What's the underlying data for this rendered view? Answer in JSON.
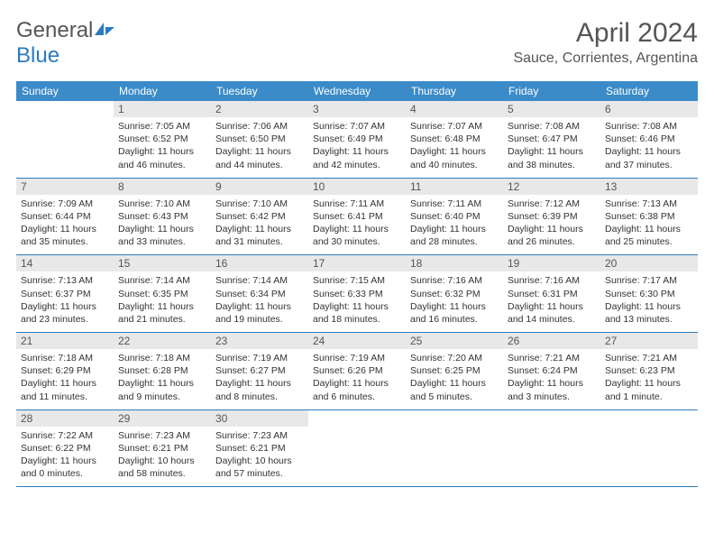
{
  "logo": {
    "text1": "General",
    "text2": "Blue"
  },
  "title": "April 2024",
  "location": "Sauce, Corrientes, Argentina",
  "colors": {
    "header_bg": "#3b8bc9",
    "header_text": "#ffffff",
    "daynum_bg": "#e8e8e8",
    "border": "#2b7bbf",
    "title_color": "#555555",
    "body_text": "#333333"
  },
  "day_names": [
    "Sunday",
    "Monday",
    "Tuesday",
    "Wednesday",
    "Thursday",
    "Friday",
    "Saturday"
  ],
  "weeks": [
    [
      null,
      {
        "n": "1",
        "sunrise": "7:05 AM",
        "sunset": "6:52 PM",
        "daylight": "11 hours and 46 minutes."
      },
      {
        "n": "2",
        "sunrise": "7:06 AM",
        "sunset": "6:50 PM",
        "daylight": "11 hours and 44 minutes."
      },
      {
        "n": "3",
        "sunrise": "7:07 AM",
        "sunset": "6:49 PM",
        "daylight": "11 hours and 42 minutes."
      },
      {
        "n": "4",
        "sunrise": "7:07 AM",
        "sunset": "6:48 PM",
        "daylight": "11 hours and 40 minutes."
      },
      {
        "n": "5",
        "sunrise": "7:08 AM",
        "sunset": "6:47 PM",
        "daylight": "11 hours and 38 minutes."
      },
      {
        "n": "6",
        "sunrise": "7:08 AM",
        "sunset": "6:46 PM",
        "daylight": "11 hours and 37 minutes."
      }
    ],
    [
      {
        "n": "7",
        "sunrise": "7:09 AM",
        "sunset": "6:44 PM",
        "daylight": "11 hours and 35 minutes."
      },
      {
        "n": "8",
        "sunrise": "7:10 AM",
        "sunset": "6:43 PM",
        "daylight": "11 hours and 33 minutes."
      },
      {
        "n": "9",
        "sunrise": "7:10 AM",
        "sunset": "6:42 PM",
        "daylight": "11 hours and 31 minutes."
      },
      {
        "n": "10",
        "sunrise": "7:11 AM",
        "sunset": "6:41 PM",
        "daylight": "11 hours and 30 minutes."
      },
      {
        "n": "11",
        "sunrise": "7:11 AM",
        "sunset": "6:40 PM",
        "daylight": "11 hours and 28 minutes."
      },
      {
        "n": "12",
        "sunrise": "7:12 AM",
        "sunset": "6:39 PM",
        "daylight": "11 hours and 26 minutes."
      },
      {
        "n": "13",
        "sunrise": "7:13 AM",
        "sunset": "6:38 PM",
        "daylight": "11 hours and 25 minutes."
      }
    ],
    [
      {
        "n": "14",
        "sunrise": "7:13 AM",
        "sunset": "6:37 PM",
        "daylight": "11 hours and 23 minutes."
      },
      {
        "n": "15",
        "sunrise": "7:14 AM",
        "sunset": "6:35 PM",
        "daylight": "11 hours and 21 minutes."
      },
      {
        "n": "16",
        "sunrise": "7:14 AM",
        "sunset": "6:34 PM",
        "daylight": "11 hours and 19 minutes."
      },
      {
        "n": "17",
        "sunrise": "7:15 AM",
        "sunset": "6:33 PM",
        "daylight": "11 hours and 18 minutes."
      },
      {
        "n": "18",
        "sunrise": "7:16 AM",
        "sunset": "6:32 PM",
        "daylight": "11 hours and 16 minutes."
      },
      {
        "n": "19",
        "sunrise": "7:16 AM",
        "sunset": "6:31 PM",
        "daylight": "11 hours and 14 minutes."
      },
      {
        "n": "20",
        "sunrise": "7:17 AM",
        "sunset": "6:30 PM",
        "daylight": "11 hours and 13 minutes."
      }
    ],
    [
      {
        "n": "21",
        "sunrise": "7:18 AM",
        "sunset": "6:29 PM",
        "daylight": "11 hours and 11 minutes."
      },
      {
        "n": "22",
        "sunrise": "7:18 AM",
        "sunset": "6:28 PM",
        "daylight": "11 hours and 9 minutes."
      },
      {
        "n": "23",
        "sunrise": "7:19 AM",
        "sunset": "6:27 PM",
        "daylight": "11 hours and 8 minutes."
      },
      {
        "n": "24",
        "sunrise": "7:19 AM",
        "sunset": "6:26 PM",
        "daylight": "11 hours and 6 minutes."
      },
      {
        "n": "25",
        "sunrise": "7:20 AM",
        "sunset": "6:25 PM",
        "daylight": "11 hours and 5 minutes."
      },
      {
        "n": "26",
        "sunrise": "7:21 AM",
        "sunset": "6:24 PM",
        "daylight": "11 hours and 3 minutes."
      },
      {
        "n": "27",
        "sunrise": "7:21 AM",
        "sunset": "6:23 PM",
        "daylight": "11 hours and 1 minute."
      }
    ],
    [
      {
        "n": "28",
        "sunrise": "7:22 AM",
        "sunset": "6:22 PM",
        "daylight": "11 hours and 0 minutes."
      },
      {
        "n": "29",
        "sunrise": "7:23 AM",
        "sunset": "6:21 PM",
        "daylight": "10 hours and 58 minutes."
      },
      {
        "n": "30",
        "sunrise": "7:23 AM",
        "sunset": "6:21 PM",
        "daylight": "10 hours and 57 minutes."
      },
      null,
      null,
      null,
      null
    ]
  ],
  "labels": {
    "sunrise": "Sunrise:",
    "sunset": "Sunset:",
    "daylight": "Daylight:"
  }
}
